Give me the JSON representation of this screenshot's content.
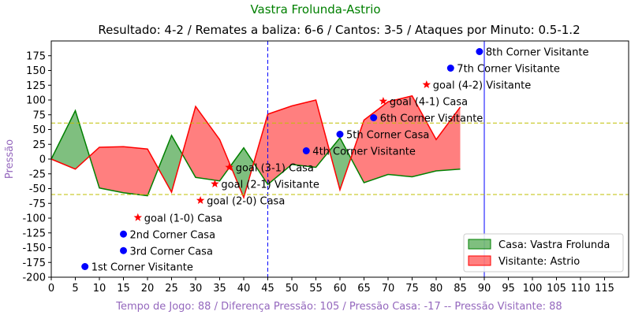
{
  "chart_data": {
    "type": "area",
    "title": "Vastra Frolunda-Astrio",
    "subtitle": "Resultado: 4-2 / Remates a baliza: 6-6 / Cantos: 3-5 / Ataques por Minuto: 0.5-1.2",
    "xlabel": "Tempo de Jogo: 88 / Diferença Pressão: 105 / Pressão Casa: -17 -- Pressão Visitante: 88",
    "ylabel": "Pressão",
    "xlim": [
      0,
      120
    ],
    "ylim": [
      -200,
      200
    ],
    "xticks": [
      0,
      5,
      10,
      15,
      20,
      25,
      30,
      35,
      40,
      45,
      50,
      55,
      60,
      65,
      70,
      75,
      80,
      85,
      90,
      95,
      100,
      105,
      110,
      115
    ],
    "yticks": [
      -200,
      -175,
      -150,
      -125,
      -100,
      -75,
      -50,
      -25,
      0,
      25,
      50,
      75,
      100,
      125,
      150,
      175
    ],
    "grid": false,
    "legend_position": "bottom-right",
    "colors": {
      "title": "#008000",
      "xlabel": "#9467bd",
      "ylabel": "#9467bd",
      "home_fill": "#008000",
      "away_fill": "#ff0000",
      "marker_blue": "#0000ff",
      "marker_red": "#ff0000",
      "halftime_line": "#0000ff",
      "threshold_line": "#bfbf00"
    },
    "x": [
      0,
      5,
      10,
      15,
      20,
      25,
      30,
      35,
      40,
      45,
      50,
      55,
      60,
      65,
      70,
      75,
      80,
      85
    ],
    "series": [
      {
        "name": "Casa: Vastra Frolunda",
        "values": [
          0,
          82,
          -49,
          -57,
          -62,
          40,
          -31,
          -37,
          19,
          -43,
          -9,
          -14,
          36,
          -40,
          -26,
          -30,
          -20,
          -17
        ]
      },
      {
        "name": "Visitante: Astrio",
        "values": [
          0,
          -17,
          20,
          21,
          17,
          -56,
          89,
          33,
          -65,
          76,
          90,
          100,
          -52,
          66,
          97,
          107,
          33,
          88
        ]
      }
    ],
    "vlines": [
      45,
      90
    ],
    "hlines": [
      61,
      -60
    ],
    "events": [
      {
        "x": 7,
        "y": -182,
        "marker": "dot",
        "label": "1st Corner Visitante"
      },
      {
        "x": 15,
        "y": -127,
        "marker": "dot",
        "label": "2nd Corner Casa"
      },
      {
        "x": 15,
        "y": -155,
        "marker": "dot",
        "label": "3rd Corner Casa"
      },
      {
        "x": 18,
        "y": -99,
        "marker": "star",
        "label": "goal (1-0) Casa"
      },
      {
        "x": 31,
        "y": -70,
        "marker": "star",
        "label": "goal (2-0) Casa"
      },
      {
        "x": 34,
        "y": -42,
        "marker": "star",
        "label": "goal (2-1) Visitante"
      },
      {
        "x": 37,
        "y": -14,
        "marker": "star",
        "label": "goal (3-1) Casa"
      },
      {
        "x": 53,
        "y": 14,
        "marker": "dot",
        "label": "4th Corner Visitante"
      },
      {
        "x": 60,
        "y": 42,
        "marker": "dot",
        "label": "5th Corner Casa"
      },
      {
        "x": 67,
        "y": 70,
        "marker": "dot",
        "label": "6th Corner Visitante"
      },
      {
        "x": 69,
        "y": 98,
        "marker": "star",
        "label": "goal (4-1) Casa"
      },
      {
        "x": 78,
        "y": 126,
        "marker": "star",
        "label": "goal (4-2) Visitante"
      },
      {
        "x": 83,
        "y": 154,
        "marker": "dot",
        "label": "7th Corner Visitante"
      },
      {
        "x": 89,
        "y": 182,
        "marker": "dot",
        "label": "8th Corner Visitante"
      }
    ]
  }
}
